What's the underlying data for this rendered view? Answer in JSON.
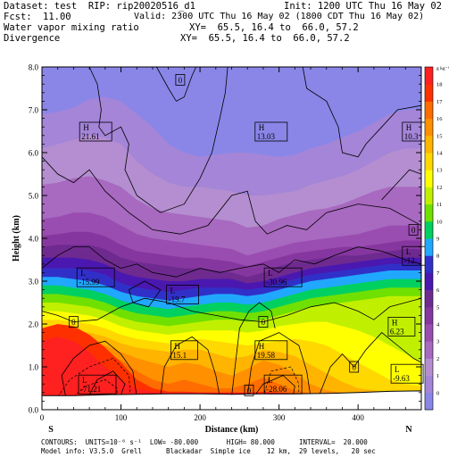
{
  "header": {
    "dataset_line": "Dataset: test  RIP: rip20020516_d1",
    "init_line": "Init: 1200 UTC Thu 16 May 02",
    "fcst_label": "Fcst:",
    "fcst_value": "11.00",
    "valid_line": "Valid: 2300 UTC Thu 16 May 02 (1800 CDT Thu 16 May 02)",
    "field1": "Water vapor mixing ratio",
    "xy1": "XY=  65.5, 16.4 to  66.0, 57.2",
    "field2": "Divergence",
    "xy2": "XY=  65.5, 16.4 to  66.0, 57.2"
  },
  "footer": {
    "line1": "CONTOURS:  UNITS=10⁻⁶ s⁻¹  LOW= -80.000       HIGH= 80.000      INTERVAL=  20.000",
    "line2": "Model info: V3.5.0  Grell      Blackadar  Simple ice    12 km,  29 levels,   20 sec"
  },
  "chart_data": {
    "type": "area",
    "xlabel": "Distance (km)",
    "ylabel": "Height (km)",
    "xlim": [
      0,
      480
    ],
    "ylim": [
      0,
      8
    ],
    "x_ticks": [
      "0",
      "100",
      "200",
      "300",
      "400"
    ],
    "y_ticks": [
      "0.0",
      "1.0",
      "2.0",
      "3.0",
      "4.0",
      "5.0",
      "6.0",
      "7.0",
      "8.0"
    ],
    "left_end_label": "S",
    "right_end_label": "N",
    "colorbar": {
      "unit": "g kg⁻¹",
      "levels": [
        "0",
        "1",
        "2",
        "3",
        "4",
        "5",
        "6",
        "7",
        "8",
        "9",
        "10",
        "11",
        "12",
        "13",
        "14",
        "15",
        "16",
        "17",
        "18"
      ],
      "colors": [
        "#8a86e8",
        "#a485d8",
        "#b48ed0",
        "#a869c0",
        "#9a4db0",
        "#86379f",
        "#6f2a90",
        "#4a18b0",
        "#3030c8",
        "#20a8ff",
        "#00d060",
        "#70e000",
        "#c0f000",
        "#ffff00",
        "#ffd800",
        "#ffb400",
        "#ff9000",
        "#ff6c00",
        "#ff3000",
        "#ff2020"
      ]
    },
    "divergence_labels": [
      {
        "kind": "H",
        "value": "21.61",
        "x": 68,
        "y": 6.5
      },
      {
        "kind": "H",
        "value": "13.03",
        "x": 290,
        "y": 6.5
      },
      {
        "kind": "H",
        "value": "10.3",
        "x": 473,
        "y": 6.5
      },
      {
        "kind": "L",
        "value": "-15.99",
        "x": 68,
        "y": 3.1
      },
      {
        "kind": "L",
        "value": "-30.96",
        "x": 305,
        "y": 3.1
      },
      {
        "kind": "L",
        "value": "-19.7",
        "x": 178,
        "y": 2.7
      },
      {
        "kind": "L",
        "value": "-12.",
        "x": 473,
        "y": 3.6
      },
      {
        "kind": "H",
        "value": "15.1",
        "x": 180,
        "y": 1.4
      },
      {
        "kind": "H",
        "value": "19.58",
        "x": 290,
        "y": 1.4
      },
      {
        "kind": "H",
        "value": "6.23",
        "x": 455,
        "y": 1.95
      },
      {
        "kind": "L",
        "value": "-71.21",
        "x": 70,
        "y": 0.6
      },
      {
        "kind": "L",
        "value": "-28.06",
        "x": 305,
        "y": 0.6
      },
      {
        "kind": "L",
        "value": "-9.63",
        "x": 462,
        "y": 0.85
      }
    ],
    "zero_contour_labels": [
      {
        "value": "0",
        "x": 175,
        "y": 7.7
      },
      {
        "value": "0",
        "x": 40,
        "y": 2.05
      },
      {
        "value": "0",
        "x": 280,
        "y": 2.05
      },
      {
        "value": "0",
        "x": 395,
        "y": 1.0
      },
      {
        "value": "0",
        "x": 262,
        "y": 0.45
      },
      {
        "value": "0",
        "x": 470,
        "y": 4.2
      }
    ]
  }
}
